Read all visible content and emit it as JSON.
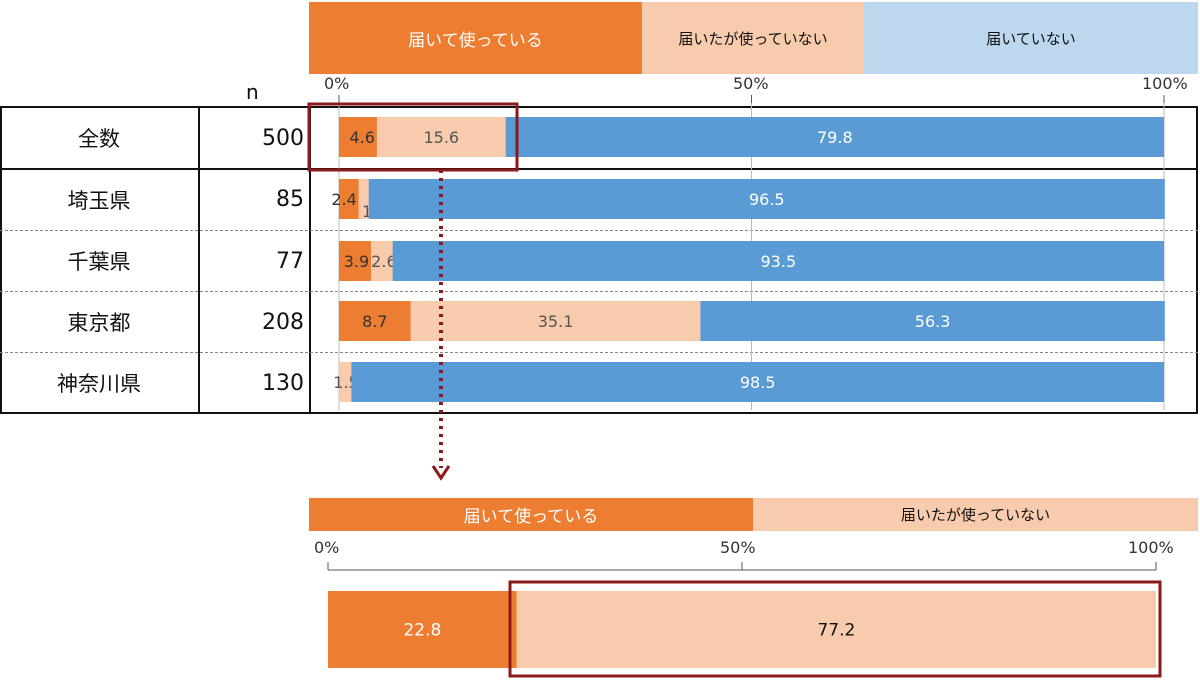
{
  "colors": {
    "used": "#ED7D31",
    "not_used": "#F8CBAD",
    "not_delivered": "#5B9BD5",
    "legend_not_delivered": "#BDD7EE",
    "highlight": "#8B1A1A"
  },
  "legend_top": {
    "used": "届いて使っている",
    "not_used": "届いたが使っていない",
    "not_delivered": "届いていない"
  },
  "legend_bottom": {
    "used": "届いて使っている",
    "not_used": "届いたが使っていない"
  },
  "n_header": "n",
  "axis_ticks_top": [
    "0%",
    "50%",
    "100%"
  ],
  "axis_ticks_bottom": [
    "0%",
    "50%",
    "100%"
  ],
  "chart_data": [
    {
      "type": "bar",
      "orientation": "horizontal",
      "stacked": true,
      "categories": [
        "全数",
        "埼玉県",
        "千葉県",
        "東京都",
        "神奈川県"
      ],
      "n": [
        "500",
        "85",
        "77",
        "208",
        "130"
      ],
      "xlim": [
        0,
        100
      ],
      "series": [
        {
          "name": "届いて使っている",
          "values": [
            4.6,
            2.4,
            3.9,
            8.7,
            null
          ],
          "labels": [
            "4.6",
            "2.4",
            "3.9",
            "8.7",
            ""
          ]
        },
        {
          "name": "届いたが使っていない",
          "values": [
            15.6,
            1.2,
            2.6,
            35.1,
            1.5
          ],
          "labels": [
            "15.6",
            "1.2",
            "2.6",
            "35.1",
            "1.5"
          ]
        },
        {
          "name": "届いていない",
          "values": [
            79.8,
            96.5,
            93.5,
            56.3,
            98.5
          ],
          "labels": [
            "79.8",
            "96.5",
            "93.5",
            "56.3",
            "98.5"
          ]
        }
      ]
    },
    {
      "type": "bar",
      "orientation": "horizontal",
      "stacked": true,
      "categories": [
        ""
      ],
      "xlim": [
        0,
        100
      ],
      "series": [
        {
          "name": "届いて使っている",
          "values": [
            22.8
          ],
          "labels": [
            "22.8"
          ]
        },
        {
          "name": "届いたが使っていない",
          "values": [
            77.2
          ],
          "labels": [
            "77.2"
          ]
        }
      ]
    }
  ]
}
